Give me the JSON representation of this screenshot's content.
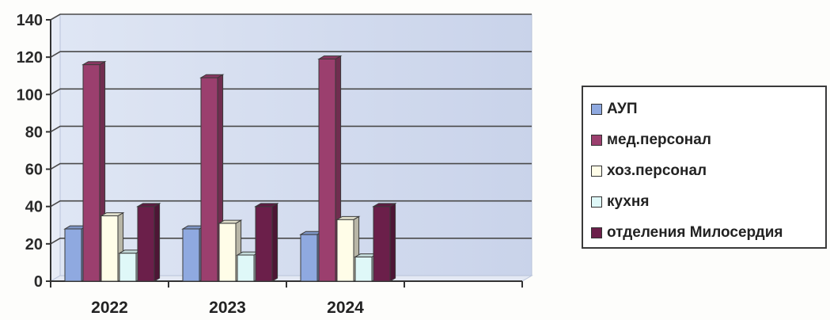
{
  "chart_data": {
    "type": "bar",
    "title": "",
    "xlabel": "",
    "ylabel": "",
    "categories": [
      "2022",
      "2023",
      "2024"
    ],
    "ylim": [
      0,
      140
    ],
    "yticks": [
      0,
      20,
      40,
      60,
      80,
      100,
      120,
      140
    ],
    "grid": true,
    "legend_position": "right",
    "series": [
      {
        "name": "АУП",
        "values": [
          28,
          28,
          25
        ],
        "color": "#8fa9e0"
      },
      {
        "name": "мед.персонал",
        "values": [
          116,
          109,
          119
        ],
        "color": "#9b3f6e"
      },
      {
        "name": "хоз.персонал",
        "values": [
          35,
          31,
          33
        ],
        "color": "#fffde8"
      },
      {
        "name": "кухня",
        "values": [
          15,
          14,
          13
        ],
        "color": "#dff8f8"
      },
      {
        "name": "отделения Милосердия",
        "values": [
          40,
          40,
          40
        ],
        "color": "#6b1f4a"
      }
    ]
  }
}
